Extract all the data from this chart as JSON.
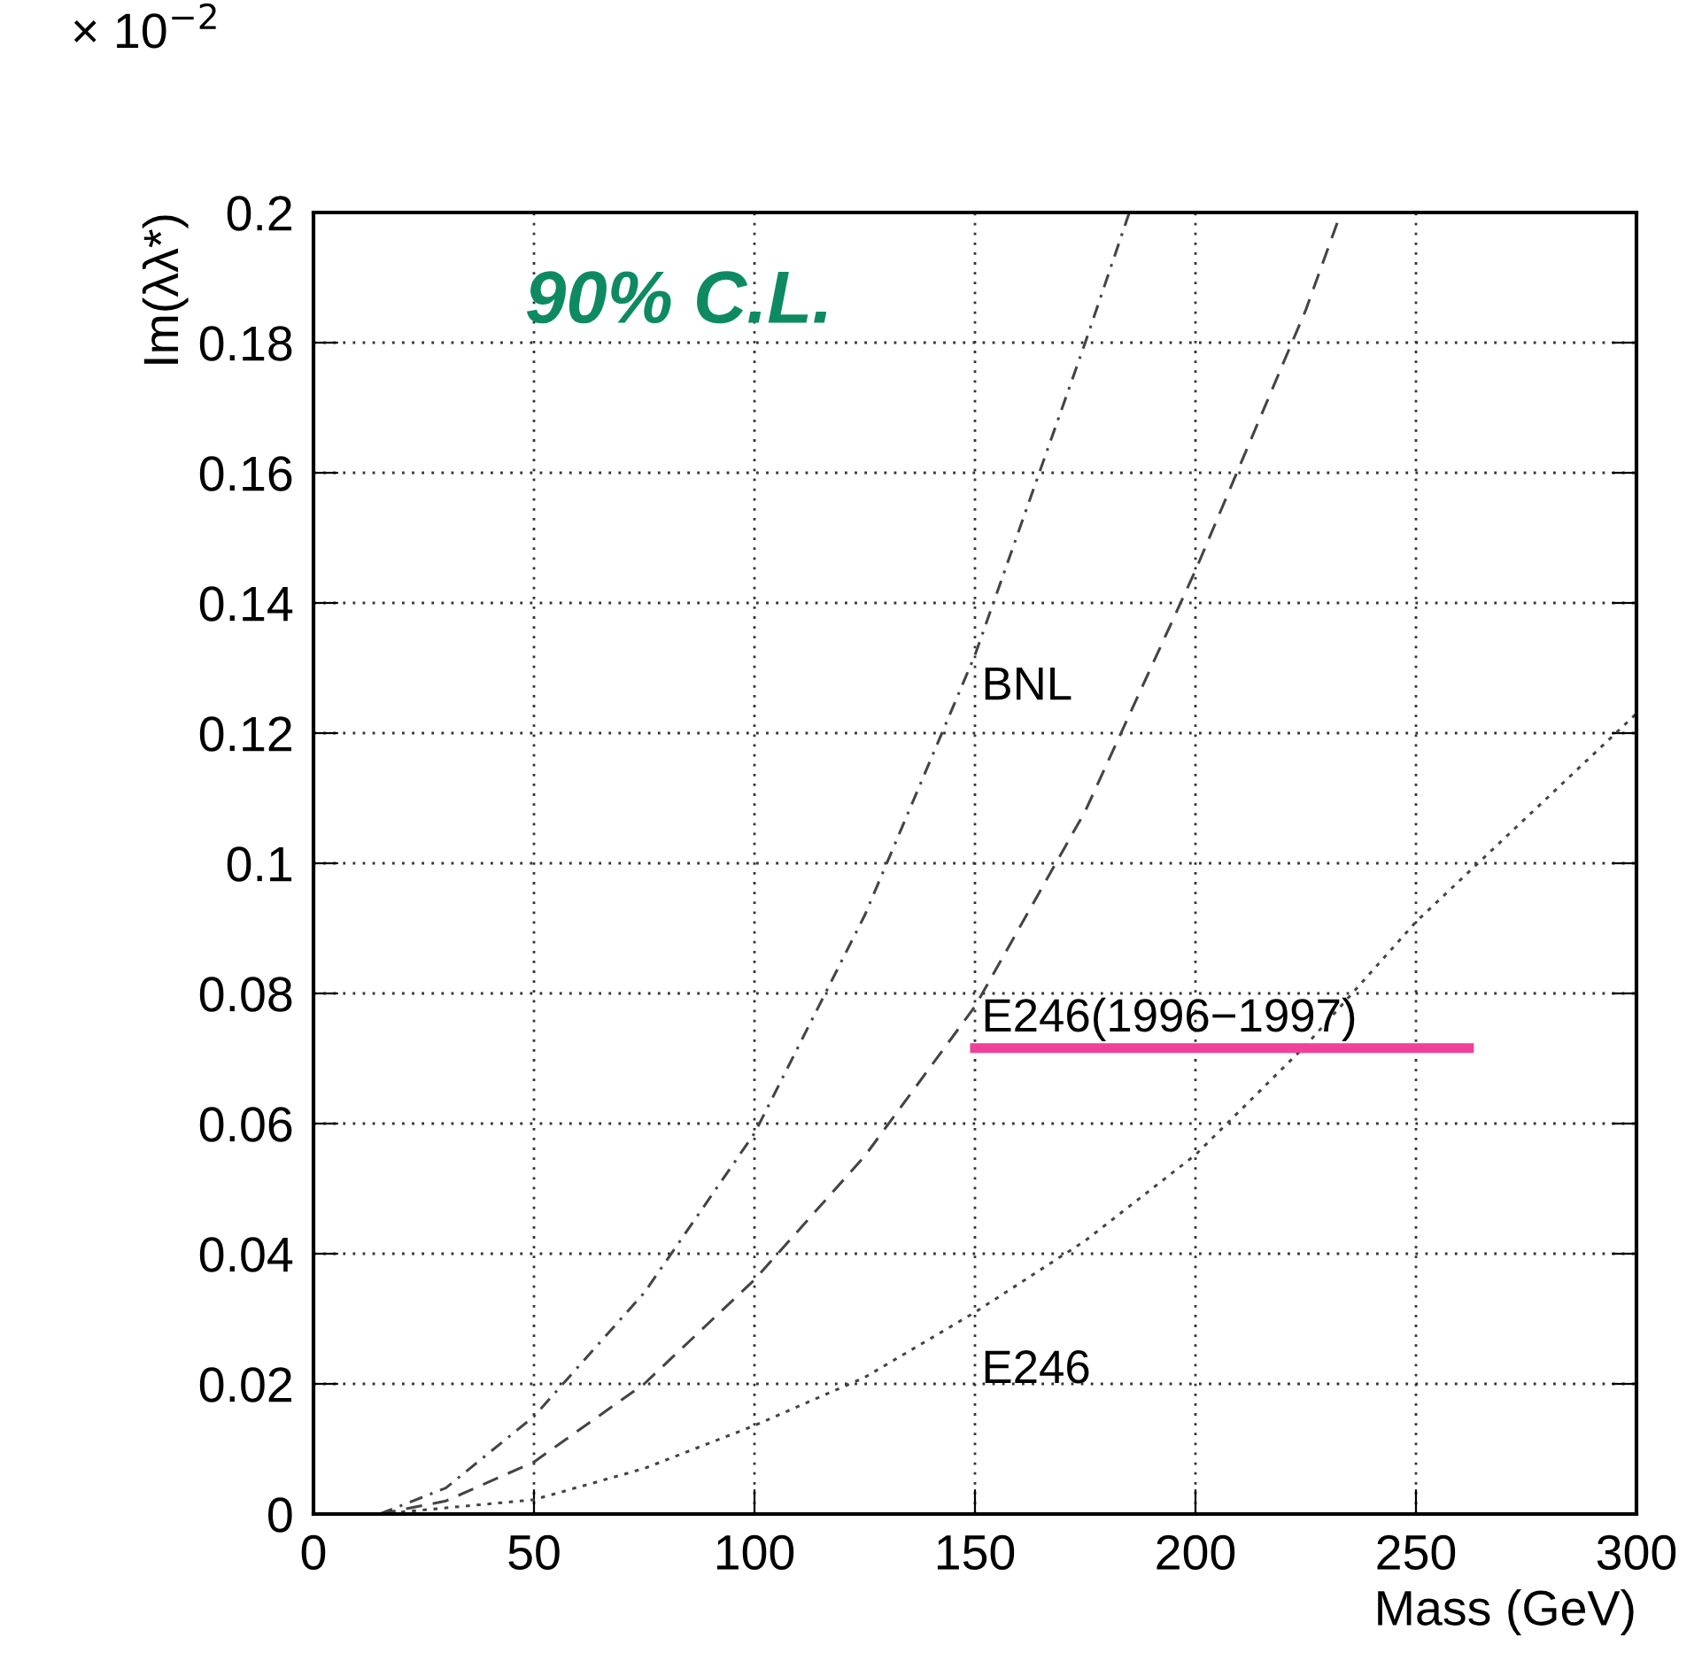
{
  "chart_data": {
    "type": "line",
    "xlabel": "Mass (GeV)",
    "ylabel": "Im(λλ*)",
    "xlim": [
      0,
      300
    ],
    "ylim": [
      0,
      0.2
    ],
    "xticks": [
      0,
      50,
      100,
      150,
      200,
      250,
      300
    ],
    "yticks": [
      0,
      0.02,
      0.04,
      0.06,
      0.08,
      0.1,
      0.12,
      0.14,
      0.16,
      0.18,
      0.2
    ],
    "grid": true,
    "marker": "none",
    "series": [
      {
        "color": "#444444",
        "line_style": "dashdot",
        "x": [
          15,
          30,
          50,
          75,
          100,
          125,
          150,
          175,
          185
        ],
        "values": [
          0,
          0.004,
          0.015,
          0.034,
          0.0585,
          0.092,
          0.132,
          0.18,
          0.2
        ]
      },
      {
        "color": "#444444",
        "line_style": "dashed",
        "x": [
          15,
          30,
          50,
          75,
          100,
          125,
          150,
          175,
          200,
          225,
          233
        ],
        "values": [
          0,
          0.002,
          0.008,
          0.02,
          0.036,
          0.055,
          0.078,
          0.108,
          0.145,
          0.185,
          0.2
        ]
      },
      {
        "color": "#444444",
        "line_style": "dotted",
        "x": [
          15,
          50,
          75,
          100,
          125,
          150,
          175,
          200,
          225,
          250,
          275,
          300
        ],
        "values": [
          0,
          0.0022,
          0.007,
          0.0136,
          0.021,
          0.031,
          0.042,
          0.0552,
          0.072,
          0.091,
          0.107,
          0.123
        ]
      },
      {
        "color": "#f0409a",
        "line_style": "solid",
        "x": [
          150,
          262
        ],
        "values": [
          0.0716,
          0.0716
        ]
      }
    ],
    "annotations": [
      "BNL",
      "E246(1996−1997)",
      "E246",
      "90% C.L.",
      "× 10$^{−2}$"
    ]
  }
}
